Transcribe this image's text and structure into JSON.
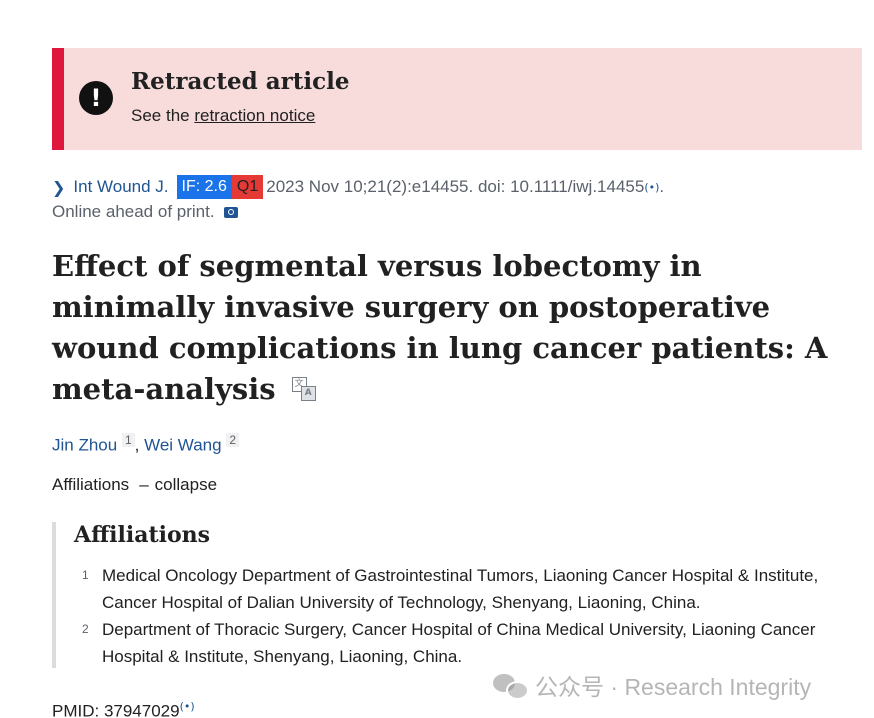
{
  "banner": {
    "title": "Retracted article",
    "prefix": "See the",
    "link": "retraction notice",
    "icon": "exclamation-icon",
    "accent_color": "#e0173c",
    "background_color": "#f8dcdc"
  },
  "citation": {
    "chevron": "chevron-right-icon",
    "journal": "Int Wound J.",
    "impact_factor": "IF: 2.6",
    "quartile": "Q1",
    "details": "2023 Nov 10;21(2):e14455. doi: 10.1111/iwj.14455",
    "end": ".",
    "online": "Online ahead of print.",
    "if_color": "#1a73e8",
    "q_color": "#e53935"
  },
  "article": {
    "title": "Effect of segmental versus lobectomy in minimally invasive surgery on postoperative wound complications in lung cancer patients: A meta-analysis"
  },
  "authors": [
    {
      "name": "Jin Zhou",
      "aff": "1"
    },
    {
      "name": "Wei Wang",
      "aff": "2"
    }
  ],
  "affiliations_toggle": {
    "label": "Affiliations",
    "dash": "–",
    "action": "collapse"
  },
  "affiliations": {
    "heading": "Affiliations",
    "items": [
      {
        "num": "1",
        "text": "Medical Oncology Department of Gastrointestinal Tumors, Liaoning Cancer Hospital & Institute, Cancer Hospital of Dalian University of Technology, Shenyang, Liaoning, China."
      },
      {
        "num": "2",
        "text": "Department of Thoracic Surgery, Cancer Hospital of China Medical University, Liaoning Cancer Hospital & Institute, Shenyang, Liaoning, China."
      }
    ]
  },
  "pmid": "PMID: 37947029",
  "watermark": "公众号 · Research Integrity"
}
